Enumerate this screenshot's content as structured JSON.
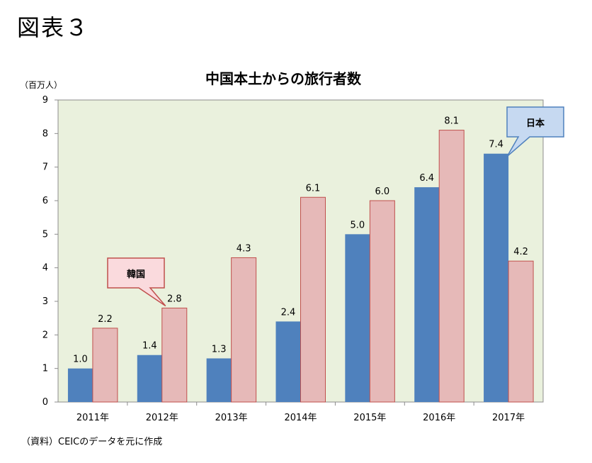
{
  "figure_label": "図表３",
  "source_note": "（資料）CEICのデータを元に作成",
  "colors": {
    "series1": "#4F81BD",
    "series2": "#E6B9B8",
    "plot_bg": "#EAF1DD",
    "callout1_fill": "#FADADD",
    "callout1_stroke": "#C0504D",
    "callout2_fill": "#C6D9F1",
    "callout2_stroke": "#4F81BD"
  },
  "chart_data": {
    "type": "bar",
    "title": "中国本土からの旅行者数",
    "ylabel": "（百万人）",
    "xlabel": "",
    "categories": [
      "2011年",
      "2012年",
      "2013年",
      "2014年",
      "2015年",
      "2016年",
      "2017年"
    ],
    "ylim": [
      0,
      9
    ],
    "yticks": [
      "0",
      "1",
      "2",
      "3",
      "4",
      "5",
      "6",
      "7",
      "8",
      "9"
    ],
    "series": [
      {
        "name": "日本",
        "values": [
          1.0,
          1.4,
          1.3,
          2.4,
          5.0,
          6.4,
          7.4
        ]
      },
      {
        "name": "韓国",
        "values": [
          2.2,
          2.8,
          4.3,
          6.1,
          6.0,
          8.1,
          4.2
        ]
      }
    ],
    "data_labels": [
      [
        "1.0",
        "1.4",
        "1.3",
        "2.4",
        "5.0",
        "6.4",
        "7.4"
      ],
      [
        "2.2",
        "2.8",
        "4.3",
        "6.1",
        "6.0",
        "8.1",
        "4.2"
      ]
    ],
    "grid": false,
    "legend": "callouts"
  }
}
